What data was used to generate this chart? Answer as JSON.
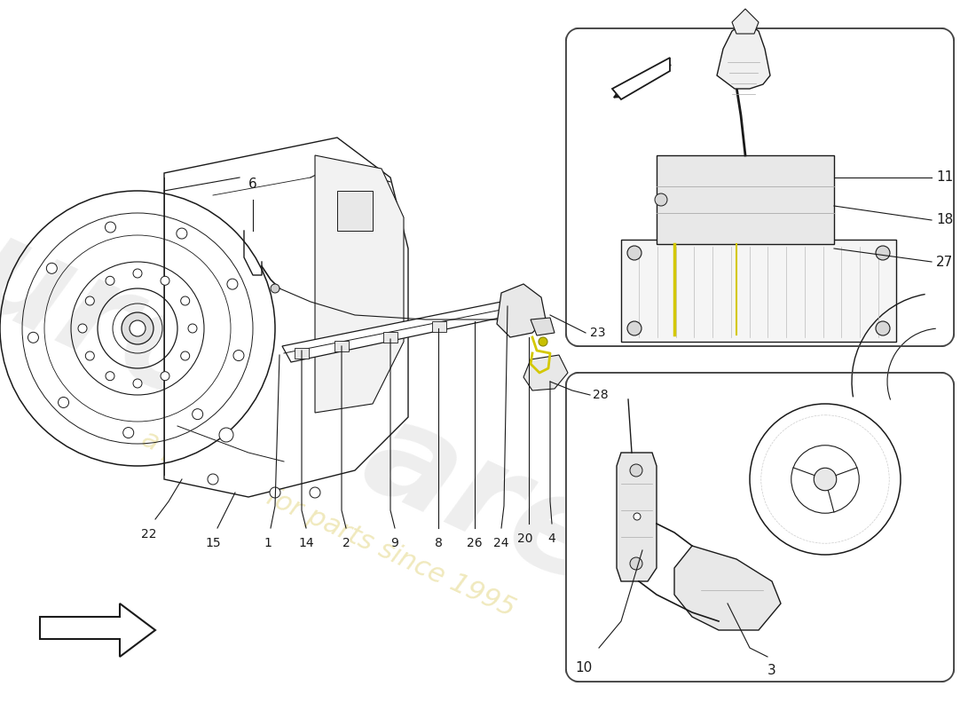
{
  "bg": "#ffffff",
  "lc": "#1a1a1a",
  "lc_thin": "#333333",
  "gray_fill": "#f5f5f5",
  "gray_mid": "#e8e8e8",
  "yellow": "#d4c800",
  "wm1": "eurospares",
  "wm2": "a passion for parts since 1995",
  "figw": 11.0,
  "figh": 8.0
}
